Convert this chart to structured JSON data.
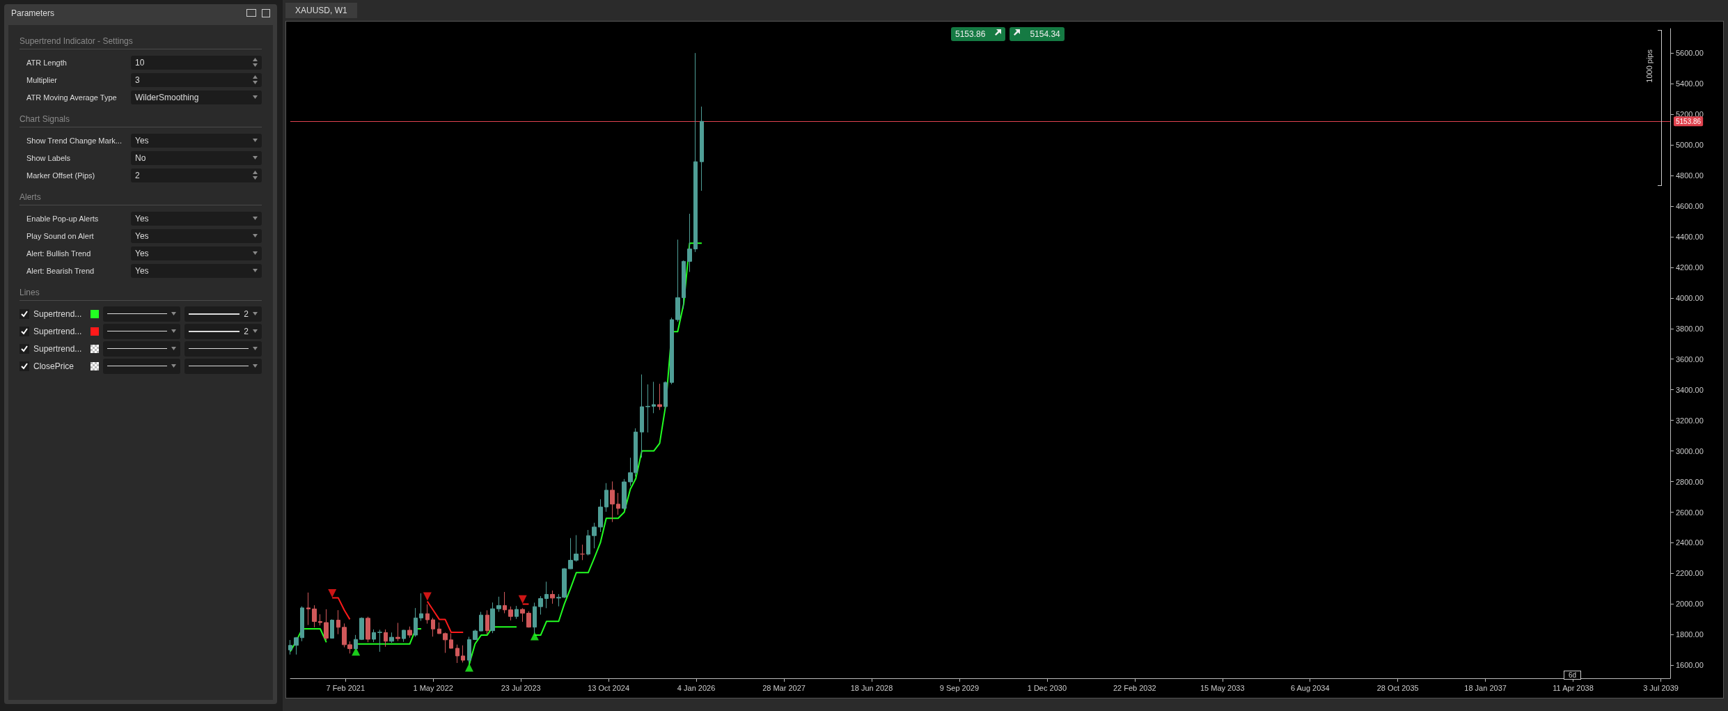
{
  "chart_data": [
    {
      "type": "other",
      "title": "Parameters",
      "annotations": [
        "Supertrend Indicator - Settings",
        "ATR Length",
        "10",
        "Multiplier",
        "3",
        "ATR Moving Average Type",
        "WilderSmoothing",
        "Chart Signals",
        "Show Trend Change Mark...",
        "Yes",
        "Show Labels",
        "No",
        "Marker Offset (Pips)",
        "2",
        "Alerts",
        "Enable Pop-up Alerts",
        "Yes",
        "Play Sound on Alert",
        "Yes",
        "Alert: Bullish Trend",
        "Yes",
        "Alert: Bearish Trend",
        "Yes",
        "Lines",
        "Supertrend...",
        "2",
        "Supertrend...",
        "2",
        "Supertrend...",
        "ClosePrice"
      ]
    },
    {
      "type": "candlestick",
      "title": "XAUUSD, W1",
      "colors": [
        "#4f9e96",
        "#4f9e96",
        "#4f9e96",
        "#d0585a",
        "#d0585a",
        "#d0585a",
        "#d0585a",
        "#4f9e96",
        "#d0585a",
        "#d0585a",
        "#d0585a",
        "#4f9e96",
        "#4f9e96",
        "#d0585a",
        "#4f9e96",
        "#4f9e96",
        "#d0585a",
        "#4f9e96",
        "#d0585a",
        "#4f9e96",
        "#d0585a",
        "#4f9e96",
        "#4f9e96",
        "#d0585a",
        "#d0585a",
        "#d0585a",
        "#d0585a",
        "#d0585a",
        "#d0585a",
        "#d0585a",
        "#4f9e96",
        "#4f9e96",
        "#4f9e96",
        "#d0585a",
        "#4f9e96",
        "#4f9e96",
        "#d0585a",
        "#d0585a",
        "#4f9e96",
        "#d0585a",
        "#d0585a",
        "#4f9e96",
        "#4f9e96",
        "#4f9e96",
        "#d0585a",
        "#4f9e96",
        "#4f9e96",
        "#4f9e96",
        "#4f9e96",
        "#d0585a",
        "#4f9e96",
        "#4f9e96",
        "#4f9e96",
        "#4f9e96",
        "#d0585a",
        "#d0585a",
        "#4f9e96",
        "#4f9e96",
        "#4f9e96",
        "#4f9e96",
        "#4f9e96",
        "#4f9e96",
        "#d0585a",
        "#4f9e96",
        "#4f9e96",
        "#4f9e96",
        "#4f9e96",
        "#4f9e96",
        "#4f9e96",
        "#4f9e96"
      ],
      "x": [
        "2020-05",
        "2020-06",
        "2020-07",
        "2020-08",
        "2020-09",
        "2020-10",
        "2020-11",
        "2020-12",
        "2021-01",
        "2021-02",
        "2021-03",
        "2021-04",
        "2021-05",
        "2021-06",
        "2021-07",
        "2021-08",
        "2021-09",
        "2021-10",
        "2021-11",
        "2021-12",
        "2022-01",
        "2022-02",
        "2022-03",
        "2022-04",
        "2022-05",
        "2022-06",
        "2022-07",
        "2022-08",
        "2022-09",
        "2022-10",
        "2022-11",
        "2022-12",
        "2023-01",
        "2023-02",
        "2023-03",
        "2023-04",
        "2023-05",
        "2023-06",
        "2023-07",
        "2023-08",
        "2023-09",
        "2023-10",
        "2023-11",
        "2023-12",
        "2024-01",
        "2024-02",
        "2024-03",
        "2024-04",
        "2024-05",
        "2024-06",
        "2024-07",
        "2024-08",
        "2024-09",
        "2024-10",
        "2024-11",
        "2024-12",
        "2025-01",
        "2025-02",
        "2025-03",
        "2025-04",
        "2025-05",
        "2025-06",
        "2025-07",
        "2025-08",
        "2025-09",
        "2025-10",
        "2025-11",
        "2025-12",
        "2026-01",
        "2026-02"
      ],
      "ohlc": [
        [
          1700,
          1765,
          1670,
          1730
        ],
        [
          1730,
          1785,
          1670,
          1780
        ],
        [
          1780,
          1985,
          1757,
          1975
        ],
        [
          1975,
          2075,
          1863,
          1968
        ],
        [
          1968,
          1992,
          1848,
          1886
        ],
        [
          1886,
          1933,
          1860,
          1879
        ],
        [
          1879,
          1966,
          1764,
          1777
        ],
        [
          1777,
          1900,
          1775,
          1895
        ],
        [
          1895,
          1960,
          1803,
          1848
        ],
        [
          1848,
          1873,
          1717,
          1734
        ],
        [
          1734,
          1756,
          1677,
          1708
        ],
        [
          1708,
          1798,
          1705,
          1769
        ],
        [
          1769,
          1913,
          1765,
          1907
        ],
        [
          1907,
          1917,
          1751,
          1770
        ],
        [
          1770,
          1834,
          1751,
          1814
        ],
        [
          1814,
          1832,
          1688,
          1816
        ],
        [
          1814,
          1834,
          1721,
          1757
        ],
        [
          1757,
          1814,
          1747,
          1783
        ],
        [
          1783,
          1877,
          1758,
          1774
        ],
        [
          1774,
          1831,
          1753,
          1829
        ],
        [
          1829,
          1853,
          1780,
          1797
        ],
        [
          1797,
          1974,
          1786,
          1909
        ],
        [
          1909,
          2070,
          1890,
          1937
        ],
        [
          1937,
          1998,
          1872,
          1897
        ],
        [
          1897,
          1910,
          1787,
          1837
        ],
        [
          1837,
          1880,
          1805,
          1807
        ],
        [
          1807,
          1814,
          1681,
          1766
        ],
        [
          1766,
          1808,
          1709,
          1711
        ],
        [
          1711,
          1735,
          1615,
          1661
        ],
        [
          1661,
          1730,
          1618,
          1633
        ],
        [
          1633,
          1786,
          1617,
          1768
        ],
        [
          1768,
          1833,
          1765,
          1824
        ],
        [
          1824,
          1949,
          1823,
          1928
        ],
        [
          1928,
          1959,
          1804,
          1826
        ],
        [
          1826,
          2010,
          1810,
          1969
        ],
        [
          1969,
          2048,
          1949,
          1990
        ],
        [
          1990,
          2079,
          1940,
          1962
        ],
        [
          1962,
          1984,
          1893,
          1919
        ],
        [
          1919,
          1988,
          1903,
          1965
        ],
        [
          1965,
          1973,
          1884,
          1940
        ],
        [
          1940,
          1953,
          1846,
          1849
        ],
        [
          1849,
          2009,
          1810,
          1983
        ],
        [
          1983,
          2052,
          1931,
          2036
        ],
        [
          2036,
          2146,
          1973,
          2063
        ],
        [
          2063,
          2088,
          2002,
          2039
        ],
        [
          2039,
          2065,
          1985,
          2044
        ],
        [
          2044,
          2235,
          2039,
          2230
        ],
        [
          2230,
          2431,
          2228,
          2286
        ],
        [
          2286,
          2450,
          2277,
          2327
        ],
        [
          2327,
          2388,
          2287,
          2326
        ],
        [
          2326,
          2484,
          2318,
          2447
        ],
        [
          2447,
          2531,
          2364,
          2503
        ],
        [
          2503,
          2685,
          2471,
          2634
        ],
        [
          2634,
          2790,
          2603,
          2744
        ],
        [
          2744,
          2801,
          2536,
          2653
        ],
        [
          2653,
          2726,
          2583,
          2625
        ],
        [
          2625,
          2817,
          2614,
          2798
        ],
        [
          2798,
          2956,
          2772,
          2858
        ],
        [
          2858,
          3148,
          2833,
          3124
        ],
        [
          3124,
          3500,
          2957,
          3289
        ],
        [
          3289,
          3435,
          3121,
          3292
        ],
        [
          3292,
          3452,
          3247,
          3303
        ],
        [
          3303,
          3439,
          3268,
          3290
        ],
        [
          3290,
          3454,
          3268,
          3448
        ],
        [
          3448,
          3871,
          3436,
          3858
        ],
        [
          3858,
          4381,
          3845,
          4002
        ],
        [
          4002,
          4245,
          3930,
          4239
        ],
        [
          4239,
          4550,
          4170,
          4320
        ],
        [
          4320,
          5600,
          4300,
          4890
        ],
        [
          4890,
          5250,
          4700,
          5153.86
        ]
      ],
      "series": [
        {
          "type": "line",
          "color": "#22ff22",
          "values": [
            1690,
            1760,
            1838,
            1838,
            1838,
            1838,
            1750,
            null,
            null,
            null,
            null,
            1739,
            1739,
            1739,
            1739,
            1739,
            1739,
            1739,
            1739,
            1739,
            1739,
            1838,
            1838,
            null,
            null,
            null,
            null,
            null,
            null,
            null,
            1605,
            1740,
            1797,
            1797,
            1851,
            1851,
            1851,
            1851,
            1851,
            null,
            null,
            1797,
            1797,
            1887,
            1887,
            1887,
            2000,
            2100,
            2205,
            2205,
            2205,
            2300,
            2400,
            2560,
            2560,
            2560,
            2600,
            2750,
            2820,
            3000,
            3000,
            3000,
            3050,
            3300,
            3780,
            3780,
            3963,
            4358,
            4358,
            4358
          ]
        },
        {
          "type": "line",
          "color": "#ff1a1a",
          "values": [
            null,
            null,
            null,
            null,
            null,
            null,
            null,
            2040,
            2040,
            1960,
            1900,
            null,
            null,
            null,
            null,
            null,
            null,
            null,
            null,
            null,
            null,
            null,
            null,
            2017,
            1960,
            1900,
            1900,
            1815,
            1815,
            1815,
            null,
            null,
            null,
            null,
            null,
            null,
            null,
            null,
            null,
            2000,
            2000,
            null,
            null,
            null,
            null,
            null,
            null,
            null,
            null,
            null,
            null,
            null,
            null,
            null,
            null,
            null,
            null,
            null,
            null,
            null,
            null,
            null,
            null,
            null,
            null,
            null,
            null,
            null,
            null,
            null
          ]
        },
        {
          "type": "scatter",
          "color": "#22ff22",
          "marker": "triangle",
          "x": [
            "2021-04",
            "2022-11",
            "2023-10"
          ],
          "values": [
            1690,
            1585,
            1790
          ]
        },
        {
          "type": "scatter",
          "color": "#ff1a1a",
          "marker": "triangle",
          "x": [
            "2020-12",
            "2022-04",
            "2023-08"
          ],
          "values": [
            2070,
            2050,
            2030
          ]
        }
      ],
      "xlim": [
        "2020-05-01",
        "2039-08-20"
      ],
      "xticks": [
        {
          "value": "2021-02-07",
          "label": "7 Feb 2021"
        },
        {
          "value": "2022-05-01",
          "label": "1 May 2022"
        },
        {
          "value": "2023-07-23",
          "label": "23 Jul 2023"
        },
        {
          "value": "2024-10-13",
          "label": "13 Oct 2024"
        },
        {
          "value": "2026-01-04",
          "label": "4 Jan 2026"
        },
        {
          "value": "2027-03-28",
          "label": "28 Mar 2027"
        },
        {
          "value": "2028-06-18",
          "label": "18 Jun 2028"
        },
        {
          "value": "2029-09-09",
          "label": "9 Sep 2029"
        },
        {
          "value": "2030-12-01",
          "label": "1 Dec 2030"
        },
        {
          "value": "2032-02-22",
          "label": "22 Feb 2032"
        },
        {
          "value": "2033-05-15",
          "label": "15 May 2033"
        },
        {
          "value": "2034-08-06",
          "label": "6 Aug 2034"
        },
        {
          "value": "2035-10-28",
          "label": "28 Oct 2035"
        },
        {
          "value": "2037-01-18",
          "label": "18 Jan 2037"
        },
        {
          "value": "2038-04-11",
          "label": "11 Apr 2038"
        },
        {
          "value": "2039-07-03",
          "label": "3 Jul 2039"
        }
      ],
      "ylim": [
        1515,
        5760
      ],
      "yticks": [
        {
          "value": 1600,
          "label": "1600.00"
        },
        {
          "value": 1800,
          "label": "1800.00"
        },
        {
          "value": 2000,
          "label": "2000.00"
        },
        {
          "value": 2200,
          "label": "2200.00"
        },
        {
          "value": 2400,
          "label": "2400.00"
        },
        {
          "value": 2600,
          "label": "2600.00"
        },
        {
          "value": 2800,
          "label": "2800.00"
        },
        {
          "value": 3000,
          "label": "3000.00"
        },
        {
          "value": 3200,
          "label": "3200.00"
        },
        {
          "value": 3400,
          "label": "3400.00"
        },
        {
          "value": 3600,
          "label": "3600.00"
        },
        {
          "value": 3800,
          "label": "3800.00"
        },
        {
          "value": 4000,
          "label": "4000.00"
        },
        {
          "value": 4200,
          "label": "4200.00"
        },
        {
          "value": 4400,
          "label": "4400.00"
        },
        {
          "value": 4600,
          "label": "4600.00"
        },
        {
          "value": 4800,
          "label": "4800.00"
        },
        {
          "value": 5000,
          "label": "5000.00"
        },
        {
          "value": 5200,
          "label": "5200.00"
        },
        {
          "value": 5400,
          "label": "5400.00"
        },
        {
          "value": 5600,
          "label": "5600.00"
        }
      ],
      "ref_lines": [
        {
          "axis": "y",
          "value": 5153.86,
          "label": "5153.86",
          "color": "#e0434f"
        }
      ],
      "grid": false,
      "annotations": [
        "5153.86",
        "5154.34",
        "1000 pips",
        "6d"
      ]
    }
  ]
}
